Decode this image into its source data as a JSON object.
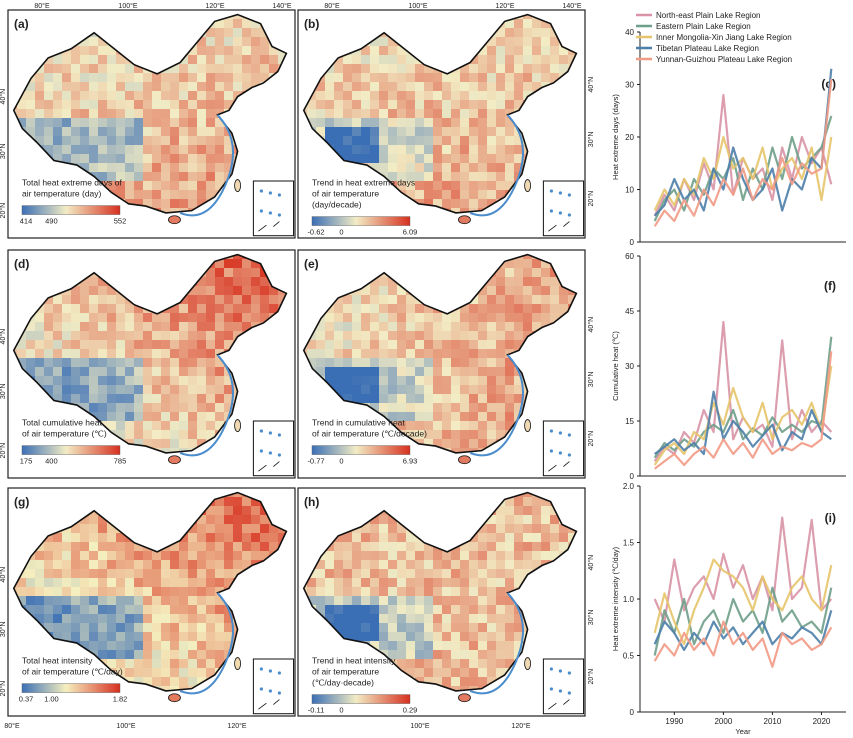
{
  "maps": [
    {
      "letter": "(a)",
      "caption": [
        "Total heat extreme days of",
        "air temperature (day)"
      ],
      "ticks": [
        "414",
        "490",
        "552"
      ],
      "colors": [
        "#3b6fb5",
        "#f2ecc4",
        "#d7301f"
      ],
      "low": 0.35,
      "south": 0.75,
      "east": 0.6,
      "bluePatch": false,
      "seed": 11
    },
    {
      "letter": "(b)",
      "caption": [
        "Trend in heat extreme days",
        "of air temperature",
        "(day/decade)"
      ],
      "ticks": [
        "-0.62",
        "0",
        "6.09"
      ],
      "colors": [
        "#3b6fb5",
        "#f2ecc4",
        "#d7301f"
      ],
      "low": 0.6,
      "south": 0.7,
      "east": 0.55,
      "bluePatch": true,
      "seed": 23
    },
    {
      "letter": "(d)",
      "caption": [
        "Total cumulative heat",
        "of air temperature (℃)"
      ],
      "ticks": [
        "175",
        "400",
        "785"
      ],
      "colors": [
        "#3b6fb5",
        "#f2ecc4",
        "#d7301f"
      ],
      "low": 0.4,
      "south": 0.15,
      "east": 0.9,
      "bluePatch": false,
      "seed": 37
    },
    {
      "letter": "(e)",
      "caption": [
        "Trend in cumulative heat",
        "of air temperature (℃/decade)"
      ],
      "ticks": [
        "-0.77",
        "0",
        "6.93"
      ],
      "colors": [
        "#3b6fb5",
        "#f2ecc4",
        "#d7301f"
      ],
      "low": 0.6,
      "south": 0.55,
      "east": 0.8,
      "bluePatch": true,
      "seed": 41
    },
    {
      "letter": "(g)",
      "caption": [
        "Total heat intensity",
        "of air temperature (℃/day)"
      ],
      "ticks": [
        "0.37",
        "1.00",
        "1.82"
      ],
      "colors": [
        "#3b6fb5",
        "#f5efbf",
        "#d7301f"
      ],
      "low": 0.3,
      "south": 0.15,
      "east": 0.85,
      "bluePatch": false,
      "seed": 53
    },
    {
      "letter": "(h)",
      "caption": [
        "Trend in heat intensity",
        "of air temperature",
        "(℃/day·decade)"
      ],
      "ticks": [
        "-0.11",
        "0",
        "0.29"
      ],
      "colors": [
        "#3b6fb5",
        "#f2ecc4",
        "#d7301f"
      ],
      "low": 0.5,
      "south": 0.5,
      "east": 0.5,
      "bluePatch": true,
      "seed": 67
    }
  ],
  "map_axis_labels": {
    "lon_top": [
      "80°E",
      "100°E",
      "120°E",
      "140°E"
    ],
    "lon_bottom_g": [
      "80°E",
      "100°E",
      "120°E"
    ],
    "lon_bottom_h": [
      "100°E",
      "120°E"
    ],
    "lat": [
      "40°N",
      "30°N",
      "20°N"
    ]
  },
  "chart_data": [
    {
      "type": "line",
      "panel": "(c)",
      "title": "",
      "xlabel": "",
      "ylabel": "Heat extreme days (days)",
      "ylim": [
        0,
        40
      ],
      "yticks": [
        "0",
        "10",
        "20",
        "30",
        "40"
      ],
      "x": [
        1986,
        1988,
        1990,
        1992,
        1994,
        1996,
        1998,
        2000,
        2002,
        2004,
        2006,
        2008,
        2010,
        2012,
        2014,
        2016,
        2018,
        2020,
        2022
      ],
      "legend": [
        "North-east Plain Lake Region",
        "Eastern Plain Lake Region",
        "Inner Mongolia-Xin Jiang Lake Region",
        "Tibetan Plateau Lake Region",
        "Yunnan-Guizhou Plateau Lake Region"
      ],
      "series": [
        {
          "name": "North-east Plain Lake Region",
          "color": "#d893a6",
          "values": [
            5,
            9,
            6,
            12,
            8,
            15,
            10,
            28,
            9,
            16,
            12,
            14,
            8,
            18,
            12,
            20,
            15,
            18,
            11
          ]
        },
        {
          "name": "Eastern Plain Lake Region",
          "color": "#6f9f8a",
          "values": [
            4,
            8,
            10,
            6,
            12,
            9,
            14,
            12,
            16,
            8,
            14,
            10,
            18,
            12,
            20,
            14,
            16,
            18,
            24
          ]
        },
        {
          "name": "Inner Mongolia-Xin Jiang Lake Region",
          "color": "#e6c46a",
          "values": [
            6,
            10,
            7,
            12,
            9,
            16,
            12,
            20,
            14,
            16,
            12,
            18,
            10,
            14,
            16,
            12,
            18,
            8,
            20
          ]
        },
        {
          "name": "Tibetan Plateau Lake Region",
          "color": "#4d7ea8",
          "values": [
            5,
            7,
            12,
            8,
            10,
            6,
            14,
            10,
            18,
            12,
            8,
            10,
            14,
            6,
            12,
            10,
            16,
            14,
            33
          ]
        },
        {
          "name": "Yunnan-Guizhou Plateau Lake Region",
          "color": "#f29a85",
          "values": [
            3,
            6,
            4,
            8,
            5,
            10,
            7,
            12,
            9,
            14,
            8,
            12,
            10,
            16,
            11,
            15,
            13,
            14,
            31
          ]
        }
      ]
    },
    {
      "type": "line",
      "panel": "(f)",
      "title": "",
      "xlabel": "",
      "ylabel": "Cumulative heat (℃)",
      "ylim": [
        0,
        60
      ],
      "yticks": [
        "0",
        "15",
        "30",
        "45",
        "60"
      ],
      "x": [
        1986,
        1988,
        1990,
        1992,
        1994,
        1996,
        1998,
        2000,
        2002,
        2004,
        2006,
        2008,
        2010,
        2012,
        2014,
        2016,
        2018,
        2020,
        2022
      ],
      "series": [
        {
          "name": "North-east Plain Lake Region",
          "color": "#d893a6",
          "values": [
            4,
            8,
            6,
            12,
            9,
            18,
            12,
            42,
            10,
            16,
            12,
            14,
            8,
            37,
            10,
            18,
            12,
            15,
            12
          ]
        },
        {
          "name": "Eastern Plain Lake Region",
          "color": "#6f9f8a",
          "values": [
            5,
            9,
            7,
            10,
            8,
            12,
            14,
            12,
            18,
            10,
            13,
            11,
            16,
            12,
            14,
            12,
            15,
            14,
            38
          ]
        },
        {
          "name": "Inner Mongolia-Xin Jiang Lake Region",
          "color": "#e6c46a",
          "values": [
            3,
            7,
            9,
            6,
            12,
            10,
            20,
            14,
            24,
            16,
            12,
            20,
            10,
            16,
            18,
            14,
            20,
            12,
            30
          ]
        },
        {
          "name": "Tibetan Plateau Lake Region",
          "color": "#4d7ea8",
          "values": [
            6,
            8,
            10,
            7,
            9,
            6,
            23,
            10,
            15,
            12,
            8,
            11,
            14,
            7,
            12,
            10,
            18,
            12,
            10
          ]
        },
        {
          "name": "Yunnan-Guizhou Plateau Lake Region",
          "color": "#f29a85",
          "values": [
            2,
            4,
            6,
            3,
            6,
            8,
            5,
            10,
            6,
            9,
            5,
            10,
            6,
            8,
            7,
            9,
            8,
            10,
            34
          ]
        }
      ]
    },
    {
      "type": "line",
      "panel": "(i)",
      "title": "",
      "xlabel": "Year",
      "ylabel": "Heat extreme intensity (℃/day)",
      "ylim": [
        0,
        2.0
      ],
      "yticks": [
        "0",
        "0.5",
        "1.0",
        "1.5",
        "2.0"
      ],
      "xticks": [
        "1990",
        "2000",
        "2010",
        "2020"
      ],
      "x": [
        1986,
        1988,
        1990,
        1992,
        1994,
        1996,
        1998,
        2000,
        2002,
        2004,
        2006,
        2008,
        2010,
        2012,
        2014,
        2016,
        2018,
        2020,
        2022
      ],
      "series": [
        {
          "name": "North-east Plain Lake Region",
          "color": "#d893a6",
          "values": [
            1.0,
            0.8,
            1.35,
            0.9,
            1.1,
            1.2,
            1.0,
            1.4,
            1.1,
            1.3,
            1.0,
            1.2,
            0.9,
            1.72,
            1.0,
            1.1,
            1.7,
            0.9,
            1.0
          ]
        },
        {
          "name": "Eastern Plain Lake Region",
          "color": "#6f9f8a",
          "values": [
            0.5,
            0.9,
            0.7,
            1.0,
            0.6,
            0.8,
            0.9,
            0.7,
            1.0,
            0.8,
            0.9,
            0.7,
            1.1,
            0.8,
            0.9,
            0.75,
            0.8,
            0.7,
            1.1
          ]
        },
        {
          "name": "Inner Mongolia-Xin Jiang Lake Region",
          "color": "#e6c46a",
          "values": [
            0.7,
            1.05,
            0.8,
            0.6,
            0.9,
            1.1,
            1.35,
            1.25,
            1.2,
            1.1,
            0.9,
            1.2,
            1.0,
            0.9,
            1.1,
            1.2,
            1.0,
            0.9,
            1.3
          ]
        },
        {
          "name": "Tibetan Plateau Lake Region",
          "color": "#4d7ea8",
          "values": [
            0.6,
            0.8,
            0.7,
            0.55,
            0.7,
            0.6,
            0.8,
            0.65,
            0.75,
            0.6,
            0.7,
            0.8,
            0.6,
            0.7,
            0.65,
            0.75,
            0.7,
            0.6,
            0.9
          ]
        },
        {
          "name": "Yunnan-Guizhou Plateau Lake Region",
          "color": "#f29a85",
          "values": [
            0.45,
            0.6,
            0.5,
            0.7,
            0.55,
            0.65,
            0.5,
            0.8,
            0.6,
            0.7,
            0.55,
            0.65,
            0.4,
            0.7,
            0.6,
            0.65,
            0.55,
            0.6,
            0.75
          ]
        }
      ]
    }
  ]
}
